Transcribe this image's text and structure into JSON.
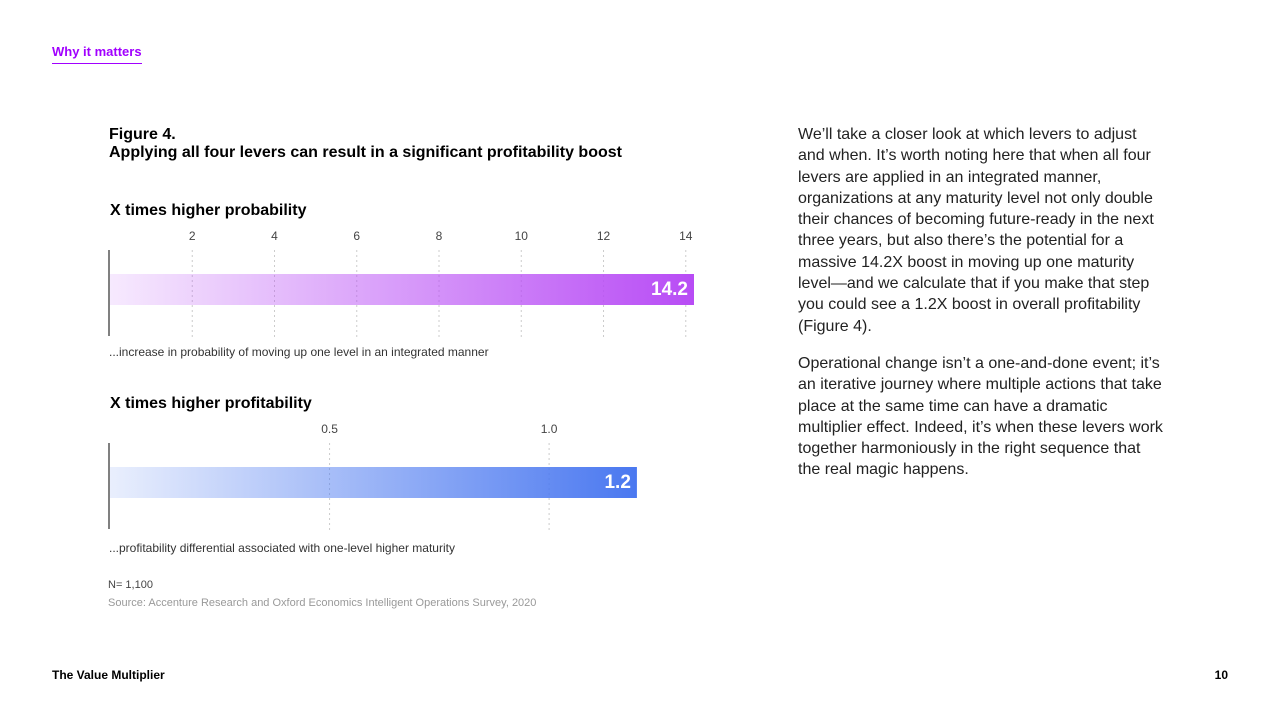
{
  "header": {
    "section": "Why it matters"
  },
  "figure": {
    "label": "Figure 4.",
    "title": "Applying all four levers can result in a significant profitability boost"
  },
  "chart_data": [
    {
      "type": "bar",
      "orientation": "horizontal",
      "title": "X times higher probability",
      "values": [
        14.2
      ],
      "color": "#b84cf5",
      "xlim": [
        0,
        14.2
      ],
      "xticks": [
        2,
        4,
        6,
        8,
        10,
        12,
        14
      ],
      "grid": true,
      "caption": "...increase in probability of moving up one level in an integrated manner"
    },
    {
      "type": "bar",
      "orientation": "horizontal",
      "title": "X times higher profitability",
      "values": [
        1.2
      ],
      "color": "#4a78f0",
      "xlim": [
        0,
        1.33
      ],
      "xticks": [
        0.5,
        {
          "value": 1,
          "label": "1.0"
        }
      ],
      "grid": true,
      "caption": "...profitability differential associated with one-level higher maturity"
    }
  ],
  "note": "N= 1,100",
  "source": "Source: Accenture Research and Oxford Economics Intelligent Operations Survey, 2020",
  "body": {
    "paragraphs": [
      "We’ll take a closer look at which levers to adjust and when. It’s worth noting here that when all four levers are applied in an integrated manner, organizations at any maturity level not only double their chances of becoming future-ready in the next three years, but also there’s the potential for a massive 14.2X boost in moving up one maturity level—and we calculate that if you make that step you could see a 1.2X boost in overall profitability (Figure 4).",
      "Operational change isn’t a one-and-done event; it’s an iterative journey where multiple actions that take place at the same time can have a dramatic multiplier effect. Indeed, it’s when these levers work together harmoniously in the right sequence that the real magic happens."
    ]
  },
  "footer": {
    "title": "The Value Multiplier",
    "page": "10"
  }
}
